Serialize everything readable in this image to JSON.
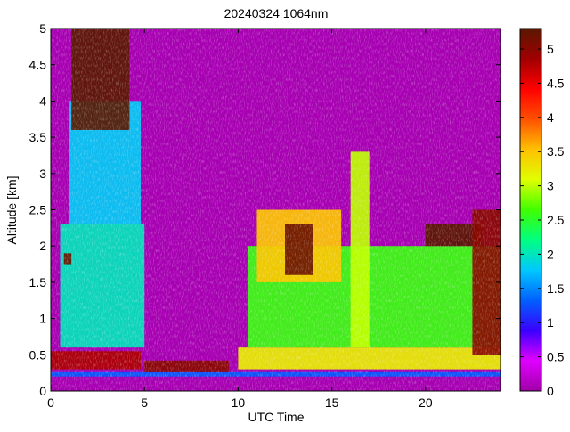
{
  "chart_data": {
    "type": "heatmap",
    "title": "20240324 1064nm",
    "xlabel": "UTC Time",
    "ylabel": "Altitude [km]",
    "xlim": [
      0,
      24
    ],
    "ylim": [
      0,
      5
    ],
    "x_ticks": [
      0,
      5,
      10,
      15,
      20
    ],
    "y_ticks": [
      0,
      0.5,
      1,
      1.5,
      2,
      2.5,
      3,
      3.5,
      4,
      4.5,
      5
    ],
    "colorbar": {
      "range": [
        0,
        5.3
      ],
      "ticks": [
        0,
        0.5,
        1,
        1.5,
        2,
        2.5,
        3,
        3.5,
        4,
        4.5,
        5
      ],
      "colors": [
        "#a000a8",
        "#e000ff",
        "#3a00ff",
        "#0060ff",
        "#00c8ff",
        "#00ff80",
        "#40ff00",
        "#e0ff00",
        "#ffc000",
        "#ff5000",
        "#ff0000",
        "#a00000",
        "#5a1800"
      ]
    },
    "features": [
      {
        "x": [
          0.0,
          24.0
        ],
        "y": [
          0.2,
          0.26
        ],
        "value": 1.3
      },
      {
        "x": [
          0.0,
          4.8
        ],
        "y": [
          0.3,
          0.55
        ],
        "value": 4.8
      },
      {
        "x": [
          5.0,
          9.5
        ],
        "y": [
          0.26,
          0.42
        ],
        "value": 5.0
      },
      {
        "x": [
          10.0,
          24.0
        ],
        "y": [
          0.3,
          0.6
        ],
        "value": 3.2
      },
      {
        "x": [
          0.5,
          5.0
        ],
        "y": [
          0.6,
          2.3
        ],
        "value": 2.0
      },
      {
        "x": [
          1.0,
          4.8
        ],
        "y": [
          2.3,
          4.0
        ],
        "value": 1.8
      },
      {
        "x": [
          0.7,
          1.1
        ],
        "y": [
          1.75,
          1.9
        ],
        "value": 5.2
      },
      {
        "x": [
          1.1,
          4.2
        ],
        "y": [
          3.6,
          5.0
        ],
        "value": 5.3
      },
      {
        "x": [
          10.5,
          24.0
        ],
        "y": [
          0.6,
          2.0
        ],
        "value": 2.6
      },
      {
        "x": [
          11.0,
          15.5
        ],
        "y": [
          1.5,
          2.5
        ],
        "value": 3.5
      },
      {
        "x": [
          12.5,
          14.0
        ],
        "y": [
          1.6,
          2.3
        ],
        "value": 5.2
      },
      {
        "x": [
          20.0,
          23.0
        ],
        "y": [
          2.0,
          2.3
        ],
        "value": 5.3
      },
      {
        "x": [
          22.5,
          24.0
        ],
        "y": [
          0.5,
          2.5
        ],
        "value": 5.0
      },
      {
        "x": [
          16.0,
          17.0
        ],
        "y": [
          0.6,
          3.3
        ],
        "value": 3.0
      }
    ]
  }
}
